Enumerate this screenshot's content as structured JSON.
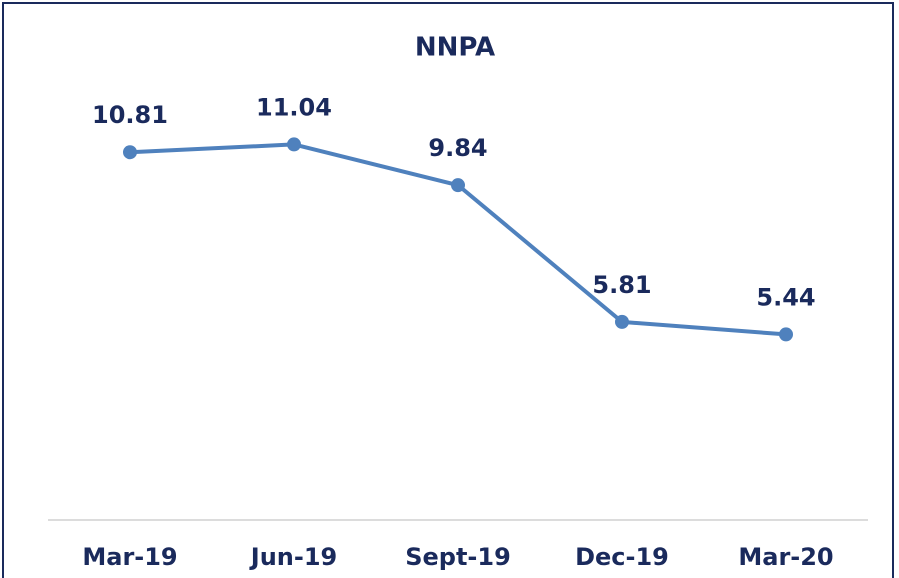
{
  "chart_data": {
    "type": "line",
    "title": "NNPA",
    "categories": [
      "Mar-19",
      "Jun-19",
      "Sept-19",
      "Dec-19",
      "Mar-20"
    ],
    "values": [
      10.81,
      11.04,
      9.84,
      5.81,
      5.44
    ],
    "color": "#4f81bd",
    "ylim": [
      0,
      14
    ]
  }
}
